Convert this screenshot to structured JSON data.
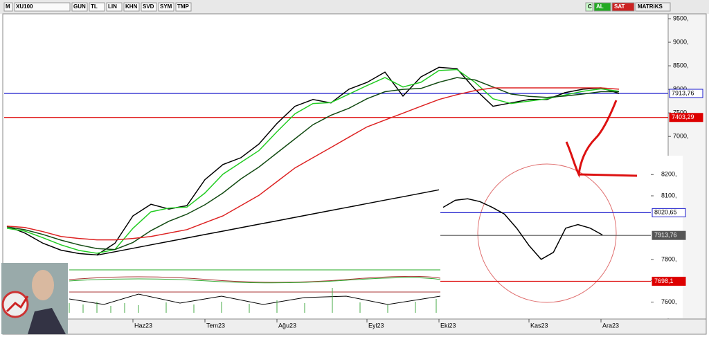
{
  "toolbar": {
    "items": [
      "M",
      "XU100",
      "GUN",
      "TL",
      "LIN",
      "KHN",
      "SVD",
      "SYM",
      "TMP"
    ],
    "right": [
      "C",
      "AL",
      "SAT",
      "MATRiKS"
    ]
  },
  "chart_data": [
    {
      "type": "line",
      "categories": [
        null,
        null,
        null,
        null,
        null,
        null,
        null,
        "Haz23",
        null,
        null,
        null,
        "Tem23",
        null,
        null,
        null,
        "Ağu23",
        null,
        null,
        null,
        null,
        "Eyl23",
        null,
        null,
        null,
        "Eki23",
        null,
        null,
        null,
        null,
        "Kas23",
        null,
        null,
        null,
        "Ara23",
        null
      ],
      "series": [
        {
          "color": "#000000",
          "values": [
            5096,
            4950,
            4733,
            4587,
            4515,
            4485,
            4733,
            5314,
            5561,
            5459,
            5532,
            6084,
            6404,
            6549,
            6840,
            7276,
            7640,
            7785,
            7712,
            8003,
            8148,
            8366,
            7858,
            8265,
            8468,
            8439,
            8003,
            7640,
            7712,
            7785,
            7785,
            7930,
            8003,
            8032,
            7914
          ]
        },
        {
          "color": "#22cc22",
          "values": [
            5050,
            4990,
            4850,
            4700,
            4580,
            4520,
            4600,
            5050,
            5400,
            5480,
            5500,
            5800,
            6200,
            6450,
            6700,
            7100,
            7480,
            7700,
            7720,
            7900,
            8080,
            8250,
            8050,
            8150,
            8400,
            8420,
            8150,
            7800,
            7700,
            7750,
            7800,
            7880,
            7960,
            8010,
            7960
          ]
        },
        {
          "color": "#124a12",
          "values": [
            5080,
            5020,
            4920,
            4800,
            4700,
            4620,
            4600,
            4750,
            5000,
            5200,
            5350,
            5550,
            5800,
            6100,
            6350,
            6650,
            6950,
            7250,
            7450,
            7600,
            7800,
            7950,
            8000,
            8020,
            8150,
            8250,
            8200,
            8050,
            7900,
            7850,
            7830,
            7860,
            7900,
            7950,
            7950
          ]
        },
        {
          "color": "#dd2222",
          "values": [
            5096,
            5067,
            4980,
            4878,
            4834,
            4805,
            4805,
            4834,
            4878,
            4950,
            5023,
            5169,
            5314,
            5532,
            5750,
            6041,
            6331,
            6549,
            6767,
            6985,
            7203,
            7349,
            7494,
            7640,
            7785,
            7887,
            7974,
            8032,
            8032,
            8032,
            8032,
            8032,
            8032,
            8032,
            8003
          ]
        },
        {
          "color": "#000000",
          "values": [
            null,
            null,
            null,
            null,
            null,
            4480,
            4553,
            4626,
            4699,
            4772,
            4845,
            4918,
            4991,
            5064,
            5137,
            5210,
            5283,
            5356,
            5429,
            5502,
            5575,
            5648,
            5721,
            5794,
            5867,
            null,
            null,
            null,
            null,
            null,
            null,
            null,
            null,
            null,
            null
          ]
        },
        {
          "color": "#1a1acc",
          "values": [
            null,
            null,
            null,
            null,
            null,
            4380,
            null,
            null,
            null,
            null,
            null,
            null,
            null,
            null,
            null,
            null,
            null,
            null,
            null,
            null,
            null,
            null,
            null,
            null,
            null,
            null,
            null,
            null,
            null,
            null,
            null,
            null,
            null,
            null,
            8003
          ]
        }
      ],
      "ylim": [
        4300,
        9750
      ],
      "yticks": [
        {
          "value": 7000,
          "label": "7000,"
        },
        {
          "value": 7500,
          "label": "7500,"
        },
        {
          "value": 8000,
          "label": "8000,"
        },
        {
          "value": 8500,
          "label": "8500,"
        },
        {
          "value": 9000,
          "label": "9000,"
        },
        {
          "value": 9500,
          "label": "9500,"
        }
      ],
      "hlines": [
        {
          "value": 7913.76,
          "label": "7913,76",
          "color": "#1a1acc"
        },
        {
          "value": 7403.29,
          "label": "7403,29",
          "color": "#dd0000"
        }
      ]
    },
    {
      "type": "line",
      "series": [
        {
          "color": "#000000",
          "values": [
            8046,
            8079,
            8086,
            8073,
            8046,
            8014,
            7948,
            7867,
            7801,
            7834,
            7948,
            7965,
            7948,
            7916
          ]
        }
      ],
      "ylim": [
        7540,
        8240
      ],
      "yticks": [
        {
          "value": 7600,
          "label": "7600,"
        },
        {
          "value": 7700,
          "label": "7700,"
        },
        {
          "value": 7800,
          "label": "7800,"
        },
        {
          "value": 8100,
          "label": "8100,"
        },
        {
          "value": 8200,
          "label": "8200,"
        }
      ],
      "hlines": [
        {
          "value": 8020.65,
          "label": "8020,65",
          "color": "#1a1acc"
        },
        {
          "value": 7913.76,
          "label": "7913,76",
          "color": "#555555"
        },
        {
          "value": 7698.1,
          "label": "7698,1",
          "color": "#dd0000"
        }
      ]
    }
  ]
}
